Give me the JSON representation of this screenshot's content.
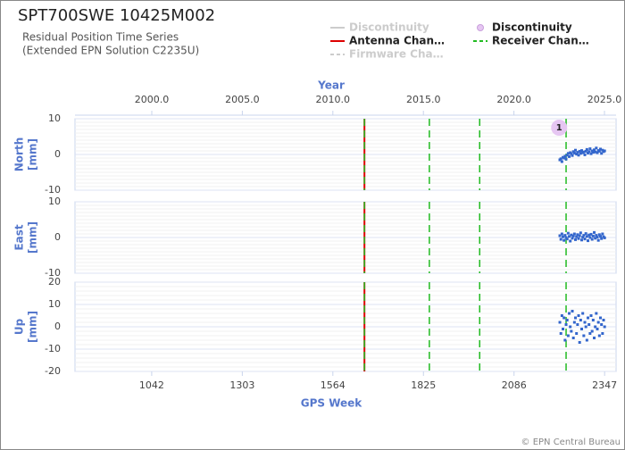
{
  "header": {
    "title": "SPT700SWE 10425M002",
    "subtitle_lines": [
      "Residual Position Time Series",
      "(Extended EPN Solution C2235U)"
    ]
  },
  "legend": {
    "entries": [
      {
        "name": "Discontinuity",
        "color": "#cccccc",
        "marker": "line",
        "inactive": true
      },
      {
        "name": "Antenna Chan…",
        "color": "#dd0000",
        "marker": "line",
        "inactive": false
      },
      {
        "name": "Firmware Cha…",
        "color": "#cccccc",
        "marker": "dashed",
        "inactive": true
      },
      {
        "name": "Discontinuity",
        "color": "#e6c6f2",
        "marker": "circle",
        "inactive": false
      },
      {
        "name": "Receiver Chan…",
        "color": "#22bb22",
        "marker": "dashed",
        "inactive": false
      }
    ]
  },
  "events": {
    "antenna_change": [
      1655
    ],
    "receiver_change": [
      1655,
      1842,
      1987,
      2236
    ],
    "discontinuity": [
      2216
    ],
    "discontinuity_labels": [
      "1"
    ]
  },
  "footer": "© EPN Central Bureau",
  "chart_data": [
    {
      "type": "scatter",
      "ylabel_lines": [
        "North",
        "[mm]"
      ],
      "ylim": [
        -10,
        10
      ],
      "yticks": [
        -10,
        0,
        10
      ],
      "xlim": [
        821,
        2380
      ],
      "color": "#3366cc",
      "x2label": "Year",
      "x2lim": [
        1995.76,
        2025.64
      ],
      "x2ticks": [
        {
          "value": 2000,
          "label": "2000.0"
        },
        {
          "value": 2005,
          "label": "2005.0"
        },
        {
          "value": 2010,
          "label": "2010.0"
        },
        {
          "value": 2015,
          "label": "2015.0"
        },
        {
          "value": 2020,
          "label": "2020.0"
        },
        {
          "value": 2025,
          "label": "2025.0"
        }
      ],
      "x": [
        2218,
        2221,
        2224,
        2227,
        2230,
        2233,
        2236,
        2239,
        2242,
        2245,
        2248,
        2251,
        2254,
        2257,
        2260,
        2263,
        2266,
        2269,
        2272,
        2275,
        2278,
        2281,
        2284,
        2287,
        2290,
        2293,
        2296,
        2299,
        2302,
        2305,
        2308,
        2311,
        2314,
        2317,
        2320,
        2323,
        2326,
        2329,
        2332,
        2335,
        2338,
        2341,
        2344,
        2347
      ],
      "values": [
        -1.5,
        -1.2,
        -2,
        -0.8,
        -1,
        -0.5,
        -1.3,
        -0.2,
        0.3,
        -0.6,
        0.5,
        0.2,
        -0.3,
        0.8,
        0.4,
        1.2,
        0.1,
        0.6,
        -0.2,
        0.9,
        0.3,
        1.1,
        0.5,
        0.7,
        -0.1,
        0.9,
        1.4,
        0.4,
        0.8,
        1.6,
        0.2,
        1,
        0.6,
        1.3,
        0.7,
        1.8,
        0.5,
        1.1,
        0.9,
        1.5,
        0.3,
        1.2,
        0.8,
        1
      ]
    },
    {
      "type": "scatter",
      "ylabel_lines": [
        "East",
        "[mm]"
      ],
      "ylim": [
        -10,
        10
      ],
      "yticks": [
        -10,
        0,
        10
      ],
      "xlim": [
        821,
        2380
      ],
      "color": "#3366cc",
      "x": [
        2218,
        2221,
        2224,
        2227,
        2230,
        2233,
        2236,
        2239,
        2242,
        2245,
        2248,
        2251,
        2254,
        2257,
        2260,
        2263,
        2266,
        2269,
        2272,
        2275,
        2278,
        2281,
        2284,
        2287,
        2290,
        2293,
        2296,
        2299,
        2302,
        2305,
        2308,
        2311,
        2314,
        2317,
        2320,
        2323,
        2326,
        2329,
        2332,
        2335,
        2338,
        2341,
        2344,
        2347
      ],
      "values": [
        0.5,
        -0.5,
        1,
        0.2,
        -0.8,
        0.6,
        0,
        -0.4,
        1.2,
        0.3,
        -1,
        0.7,
        -0.2,
        0.4,
        1,
        -0.6,
        0.2,
        0.8,
        -0.3,
        0.5,
        1.3,
        -0.7,
        0.1,
        0.6,
        -0.4,
        1.1,
        0.3,
        -0.9,
        0.7,
        0,
        0.9,
        -0.5,
        0.4,
        1.4,
        -0.2,
        0.6,
        0.1,
        -0.8,
        0.8,
        0.3,
        -0.3,
        1,
        0.2,
        -0.1
      ]
    },
    {
      "type": "scatter",
      "ylabel_lines": [
        "Up",
        "[mm]"
      ],
      "ylim": [
        -20,
        20
      ],
      "yticks": [
        -20,
        -10,
        0,
        10,
        20
      ],
      "xlim": [
        821,
        2380
      ],
      "color": "#3366cc",
      "xlabel": "GPS Week",
      "xticks": [
        1042,
        1303,
        1564,
        1825,
        2086,
        2347
      ],
      "x": [
        2218,
        2221,
        2224,
        2227,
        2230,
        2233,
        2236,
        2239,
        2242,
        2245,
        2248,
        2251,
        2254,
        2257,
        2260,
        2263,
        2266,
        2269,
        2272,
        2275,
        2278,
        2281,
        2284,
        2287,
        2290,
        2293,
        2296,
        2299,
        2302,
        2305,
        2308,
        2311,
        2314,
        2317,
        2320,
        2323,
        2326,
        2329,
        2332,
        2335,
        2338,
        2341,
        2344,
        2347
      ],
      "values": [
        2,
        -3,
        5,
        -1,
        4,
        -6,
        1,
        3,
        -4,
        6,
        0,
        -2,
        7,
        -5,
        2,
        4,
        -3,
        1,
        5,
        -7,
        3,
        -1,
        6,
        -4,
        2,
        0,
        -6,
        4,
        1,
        -3,
        5,
        -2,
        3,
        -5,
        0,
        6,
        -1,
        2,
        -4,
        4,
        1,
        -3,
        3,
        0
      ]
    }
  ]
}
